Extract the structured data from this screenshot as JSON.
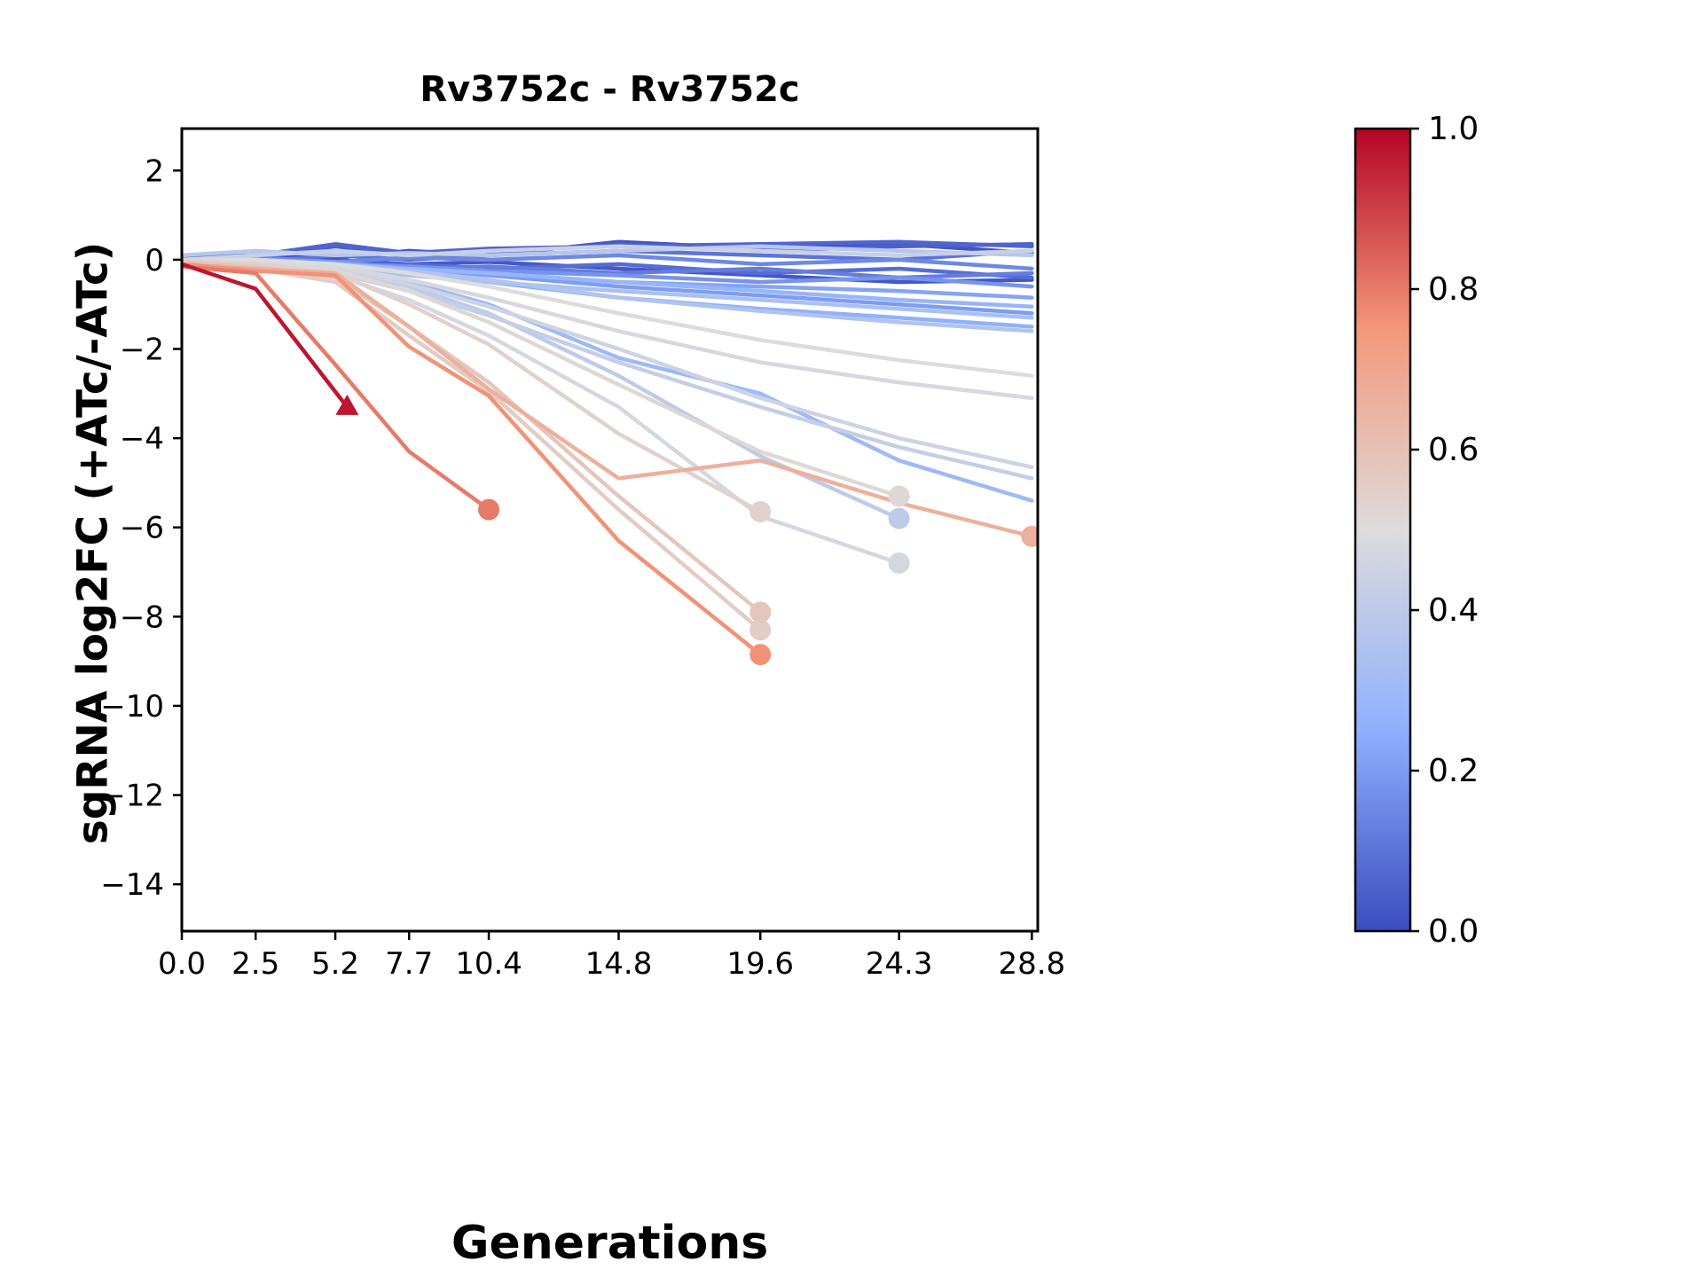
{
  "chart_data": {
    "type": "line",
    "title": "Rv3752c - Rv3752c",
    "xlabel": "Generations",
    "ylabel": "sgRNA log2FC (+ATc/-ATc)",
    "xlim": [
      0,
      29.0
    ],
    "ylim": [
      -15.05,
      2.94
    ],
    "grid": false,
    "x_ticks": [
      0.0,
      2.5,
      5.2,
      7.7,
      10.4,
      14.8,
      19.6,
      24.3,
      28.8
    ],
    "x_tick_labels": [
      "0.0",
      "2.5",
      "5.2",
      "7.7",
      "10.4",
      "14.8",
      "19.6",
      "24.3",
      "28.8"
    ],
    "y_ticks": [
      2,
      0,
      -2,
      -4,
      -6,
      -8,
      -10,
      -12,
      -14
    ],
    "y_tick_labels": [
      "2",
      "0",
      "−2",
      "−4",
      "−6",
      "−8",
      "−10",
      "−12",
      "−14"
    ],
    "colorbar": {
      "cmap": "coolwarm",
      "min": 0.0,
      "max": 1.0,
      "tick_values": [
        1.0,
        0.8,
        0.6,
        0.4,
        0.2,
        0.0
      ],
      "tick_labels": [
        "1.0",
        "0.8",
        "0.6",
        "0.4",
        "0.2",
        "0.0"
      ]
    },
    "series": [
      {
        "color_value": 0.97,
        "marker": "triangle",
        "x": [
          0,
          2.5,
          5.6
        ],
        "y": [
          -0.1,
          -0.65,
          -3.3
        ]
      },
      {
        "color_value": 0.8,
        "marker": "circle",
        "x": [
          0,
          2.5,
          5.2,
          7.7,
          10.4
        ],
        "y": [
          -0.15,
          -0.3,
          -2.35,
          -4.3,
          -5.6
        ]
      },
      {
        "color_value": 0.76,
        "marker": "circle",
        "x": [
          0,
          2.5,
          5.2,
          7.7,
          10.4,
          14.8,
          19.6
        ],
        "y": [
          -0.1,
          -0.25,
          -0.35,
          -1.95,
          -3.05,
          -6.3,
          -8.85
        ]
      },
      {
        "color_value": 0.66,
        "marker": "circle",
        "x": [
          0,
          2.5,
          5.2,
          7.7,
          10.4,
          14.8,
          19.6,
          24.3,
          28.8
        ],
        "y": [
          -0.1,
          -0.2,
          -0.3,
          -1.5,
          -2.9,
          -4.9,
          -4.5,
          -5.45,
          -6.2
        ]
      },
      {
        "color_value": 0.58,
        "marker": "circle",
        "x": [
          0,
          2.5,
          5.2,
          7.7,
          10.4,
          14.8,
          19.6
        ],
        "y": [
          -0.05,
          -0.15,
          -0.4,
          -1.5,
          -2.75,
          -5.3,
          -7.9
        ]
      },
      {
        "color_value": 0.56,
        "marker": "circle",
        "x": [
          0,
          2.5,
          5.2,
          7.7,
          10.4,
          14.8,
          19.6
        ],
        "y": [
          -0.05,
          -0.2,
          -0.5,
          -1.7,
          -2.95,
          -5.6,
          -8.3
        ]
      },
      {
        "color_value": 0.54,
        "marker": "circle",
        "x": [
          0,
          2.5,
          5.2,
          7.7,
          10.4,
          14.8,
          19.6
        ],
        "y": [
          0,
          -0.1,
          -0.3,
          -1.0,
          -1.9,
          -3.9,
          -5.65
        ]
      },
      {
        "color_value": 0.52,
        "marker": "circle",
        "x": [
          0,
          2.5,
          5.2,
          7.7,
          10.4,
          14.8,
          19.6,
          24.3
        ],
        "y": [
          0,
          -0.1,
          -0.25,
          -0.7,
          -1.4,
          -2.8,
          -4.3,
          -5.3
        ]
      },
      {
        "color_value": 0.47,
        "marker": "circle",
        "x": [
          0,
          2.5,
          5.2,
          7.7,
          10.4,
          14.8,
          19.6,
          24.3
        ],
        "y": [
          0,
          -0.1,
          -0.35,
          -0.9,
          -1.7,
          -3.3,
          -5.75,
          -6.8
        ]
      },
      {
        "color_value": 0.4,
        "marker": "circle",
        "x": [
          0,
          2.5,
          5.2,
          7.7,
          10.4,
          14.8,
          19.6,
          24.3
        ],
        "y": [
          0,
          -0.05,
          -0.2,
          -0.6,
          -1.2,
          -2.6,
          -4.4,
          -5.8
        ]
      },
      {
        "color_value": 0.45,
        "marker": "none",
        "x": [
          0,
          2.5,
          5.2,
          7.7,
          10.4,
          14.8,
          19.6,
          24.3,
          28.8
        ],
        "y": [
          0,
          -0.05,
          -0.2,
          -0.55,
          -1.05,
          -2.0,
          -3.1,
          -4.0,
          -4.65
        ]
      },
      {
        "color_value": 0.42,
        "marker": "none",
        "x": [
          0,
          2.5,
          5.2,
          7.7,
          10.4,
          14.8,
          19.6,
          24.3,
          28.8
        ],
        "y": [
          0,
          -0.1,
          -0.3,
          -0.7,
          -1.25,
          -2.3,
          -3.3,
          -4.2,
          -4.9
        ]
      },
      {
        "color_value": 0.48,
        "marker": "none",
        "x": [
          0,
          2.5,
          5.2,
          7.7,
          10.4,
          14.8,
          19.6,
          24.3,
          28.8
        ],
        "y": [
          0,
          -0.05,
          -0.15,
          -0.45,
          -0.85,
          -1.6,
          -2.3,
          -2.75,
          -3.1
        ]
      },
      {
        "color_value": 0.5,
        "marker": "none",
        "x": [
          0,
          2.5,
          5.2,
          7.7,
          10.4,
          14.8,
          19.6,
          24.3,
          28.8
        ],
        "y": [
          0,
          0,
          -0.1,
          -0.3,
          -0.6,
          -1.2,
          -1.8,
          -2.25,
          -2.6
        ]
      },
      {
        "color_value": 0.3,
        "marker": "none",
        "x": [
          0,
          2.5,
          5.2,
          7.7,
          10.4,
          14.8,
          19.6,
          24.3,
          28.8
        ],
        "y": [
          0,
          -0.05,
          -0.15,
          -0.5,
          -1.0,
          -2.2,
          -3.0,
          -4.5,
          -5.4
        ]
      },
      {
        "color_value": 0.36,
        "marker": "none",
        "x": [
          0,
          2.5,
          5.2,
          7.7,
          10.4,
          14.8,
          19.6,
          24.3,
          28.8
        ],
        "y": [
          0,
          0,
          -0.1,
          -0.25,
          -0.45,
          -0.85,
          -1.15,
          -1.4,
          -1.6
        ]
      },
      {
        "color_value": 0.25,
        "marker": "none",
        "x": [
          0,
          2.5,
          5.2,
          7.7,
          10.4,
          14.8,
          19.6,
          24.3,
          28.8
        ],
        "y": [
          0,
          -0.05,
          -0.1,
          -0.3,
          -0.5,
          -0.85,
          -1.1,
          -1.3,
          -1.5
        ]
      },
      {
        "color_value": 0.2,
        "marker": "none",
        "x": [
          0,
          2.5,
          5.2,
          7.7,
          10.4,
          14.8,
          19.6,
          24.3,
          28.8
        ],
        "y": [
          0,
          0,
          -0.05,
          -0.2,
          -0.35,
          -0.6,
          -0.8,
          -1.0,
          -1.2
        ]
      },
      {
        "color_value": 0.05,
        "marker": "none",
        "x": [
          0,
          2.5,
          5.2,
          7.7,
          10.4,
          14.8,
          19.6,
          24.3,
          28.8
        ],
        "y": [
          0,
          0.05,
          0.3,
          0.1,
          0.15,
          0.35,
          0.2,
          0.3,
          0.35
        ]
      },
      {
        "color_value": 0.02,
        "marker": "none",
        "x": [
          0,
          2.5,
          5.2,
          7.7,
          10.4,
          14.8,
          19.6,
          24.3,
          28.8
        ],
        "y": [
          0,
          0.1,
          0.05,
          0.2,
          0.1,
          0.4,
          0.25,
          0.35,
          0.15
        ]
      },
      {
        "color_value": 0.1,
        "marker": "none",
        "x": [
          0,
          2.5,
          5.2,
          7.7,
          10.4,
          14.8,
          19.6,
          24.3,
          28.8
        ],
        "y": [
          0,
          -0.05,
          0.1,
          0,
          0.1,
          0.2,
          0.1,
          0,
          0.2
        ]
      },
      {
        "color_value": 0.15,
        "marker": "none",
        "x": [
          0,
          2.5,
          5.2,
          7.7,
          10.4,
          14.8,
          19.6,
          24.3,
          28.8
        ],
        "y": [
          0,
          0.05,
          -0.05,
          0.05,
          0,
          0.1,
          -0.1,
          0,
          -0.2
        ]
      },
      {
        "color_value": 0.08,
        "marker": "none",
        "x": [
          0,
          2.5,
          5.2,
          7.7,
          10.4,
          14.8,
          19.6,
          24.3,
          28.8
        ],
        "y": [
          0,
          0,
          -0.1,
          -0.1,
          -0.2,
          -0.1,
          -0.3,
          -0.2,
          -0.4
        ]
      },
      {
        "color_value": 0.12,
        "marker": "none",
        "x": [
          0,
          2.5,
          5.2,
          7.7,
          10.4,
          14.8,
          19.6,
          24.3,
          28.8
        ],
        "y": [
          0,
          -0.1,
          -0.05,
          -0.2,
          -0.15,
          -0.3,
          -0.2,
          -0.4,
          -0.3
        ]
      },
      {
        "color_value": 0.18,
        "marker": "none",
        "x": [
          0,
          2.5,
          5.2,
          7.7,
          10.4,
          14.8,
          19.6,
          24.3,
          28.8
        ],
        "y": [
          0,
          0,
          -0.1,
          -0.15,
          -0.25,
          -0.35,
          -0.5,
          -0.4,
          -0.6
        ]
      },
      {
        "color_value": 0.22,
        "marker": "none",
        "x": [
          0,
          2.5,
          5.2,
          7.7,
          10.4,
          14.8,
          19.6,
          24.3,
          28.8
        ],
        "y": [
          0,
          -0.05,
          -0.15,
          -0.25,
          -0.3,
          -0.5,
          -0.6,
          -0.7,
          -0.85
        ]
      },
      {
        "color_value": 0.38,
        "marker": "none",
        "x": [
          0,
          2.5,
          5.2,
          7.7,
          10.4,
          14.8,
          19.6,
          24.3,
          28.8
        ],
        "y": [
          0.1,
          0.2,
          0.1,
          0.15,
          0.1,
          0.2,
          0.3,
          0.2,
          0.1
        ]
      },
      {
        "color_value": 0.43,
        "marker": "none",
        "x": [
          0,
          2.5,
          5.2,
          7.7,
          10.4,
          14.8,
          19.6,
          24.3,
          28.8
        ],
        "y": [
          0,
          0.1,
          0.2,
          0.1,
          0.2,
          0.3,
          0.2,
          0.1,
          0.2
        ]
      },
      {
        "color_value": 0.34,
        "marker": "none",
        "x": [
          0,
          2.5,
          5.2,
          7.7,
          10.4,
          14.8,
          19.6,
          24.3,
          28.8
        ],
        "y": [
          0,
          -0.1,
          -0.2,
          -0.35,
          -0.5,
          -0.7,
          -0.9,
          -1.1,
          -1.3
        ]
      },
      {
        "color_value": 0.28,
        "marker": "none",
        "x": [
          0,
          2.5,
          5.2,
          7.7,
          10.4,
          14.8,
          19.6,
          24.3,
          28.8
        ],
        "y": [
          0,
          0,
          -0.1,
          -0.2,
          -0.3,
          -0.5,
          -0.7,
          -0.9,
          -1.05
        ]
      },
      {
        "color_value": 0.06,
        "marker": "none",
        "x": [
          0,
          2.5,
          5.2,
          7.7,
          10.4,
          14.8,
          19.6,
          24.3,
          28.8
        ],
        "y": [
          0.05,
          0.1,
          0.35,
          0.15,
          0.25,
          0.3,
          0.35,
          0.4,
          0.3
        ]
      },
      {
        "color_value": 0.03,
        "marker": "none",
        "x": [
          0,
          2.5,
          5.2,
          7.7,
          10.4,
          14.8,
          19.6,
          24.3,
          28.8
        ],
        "y": [
          0,
          -0.05,
          0,
          -0.1,
          -0.05,
          -0.2,
          -0.35,
          -0.5,
          -0.45
        ]
      }
    ]
  }
}
